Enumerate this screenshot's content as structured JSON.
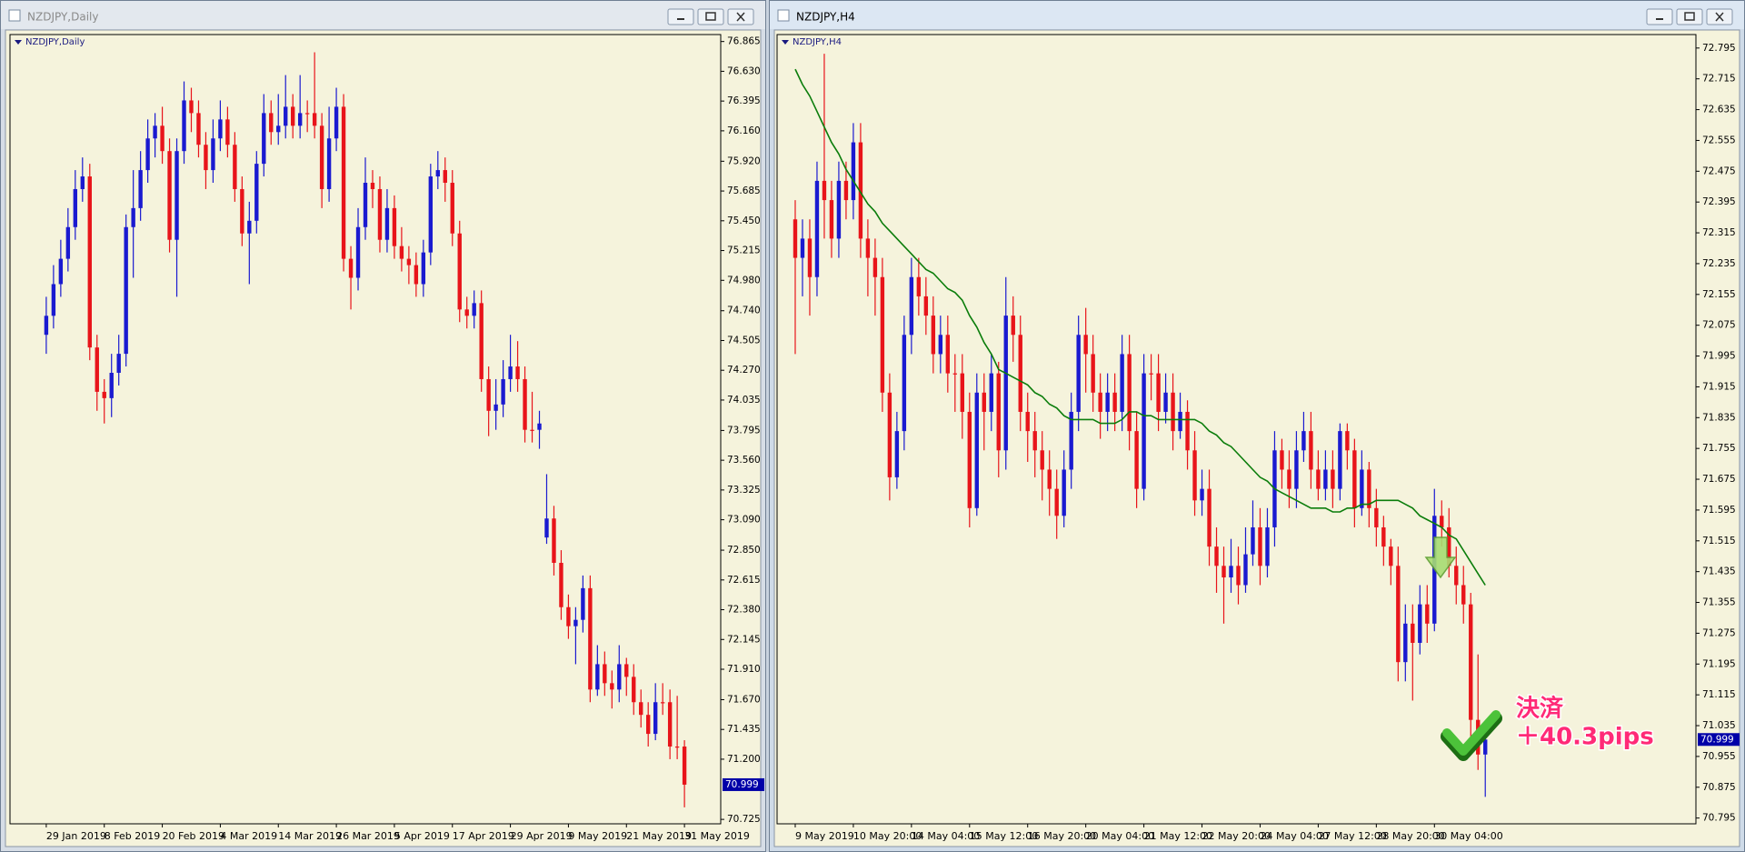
{
  "chart_data": [
    {
      "type": "candlestick",
      "title": "NZDJPY,Daily",
      "background": "#f5f3dc",
      "up_color": "#1a1ad0",
      "down_color": "#e8141a",
      "categories": [
        "29 Jan 2019",
        null,
        null,
        null,
        null,
        null,
        null,
        null,
        "8 Feb 2019",
        null,
        null,
        null,
        null,
        null,
        null,
        null,
        "20 Feb 2019",
        null,
        null,
        null,
        null,
        null,
        null,
        null,
        "4 Mar 2019",
        null,
        null,
        null,
        null,
        null,
        null,
        null,
        "14 Mar 2019",
        null,
        null,
        null,
        null,
        null,
        null,
        null,
        "26 Mar 2019",
        null,
        null,
        null,
        null,
        null,
        null,
        null,
        "5 Apr 2019",
        null,
        null,
        null,
        null,
        null,
        null,
        null,
        "17 Apr 2019",
        null,
        null,
        null,
        null,
        null,
        null,
        null,
        "29 Apr 2019",
        null,
        null,
        null,
        null,
        null,
        null,
        null,
        "9 May 2019",
        null,
        null,
        null,
        null,
        null,
        null,
        null,
        "21 May 2019",
        null,
        null,
        null,
        null,
        null,
        null,
        null,
        "31 May 2019"
      ],
      "open": [
        74.55,
        74.7,
        74.95,
        75.15,
        75.4,
        75.7,
        75.8,
        74.45,
        74.1,
        74.05,
        74.25,
        74.4,
        75.4,
        75.55,
        75.85,
        76.1,
        76.2,
        76.0,
        75.3,
        76.0,
        76.4,
        76.3,
        76.05,
        75.85,
        76.1,
        76.25,
        76.05,
        75.7,
        75.35,
        75.45,
        75.9,
        76.3,
        76.15,
        76.2,
        76.35,
        76.2,
        76.3,
        76.3,
        76.2,
        75.7,
        76.1,
        76.35,
        75.15,
        75.0,
        75.4,
        75.75,
        75.7,
        75.3,
        75.55,
        75.25,
        75.15,
        75.1,
        74.95,
        75.2,
        75.8,
        75.85,
        75.75,
        75.35,
        74.75,
        74.7,
        74.8,
        74.2,
        73.95,
        74.0,
        74.2,
        74.3,
        74.2,
        73.8,
        73.8,
        72.95,
        73.1,
        72.75,
        72.4,
        72.25,
        72.3,
        72.55,
        71.75,
        71.95,
        71.8,
        71.75,
        71.95,
        71.85,
        71.65,
        71.55,
        71.4,
        71.65,
        71.65,
        71.3,
        71.3
      ],
      "high": [
        74.85,
        75.1,
        75.3,
        75.55,
        75.85,
        75.95,
        75.9,
        74.55,
        74.2,
        74.4,
        74.55,
        75.5,
        75.85,
        76.0,
        76.25,
        76.3,
        76.35,
        76.1,
        76.1,
        76.55,
        76.5,
        76.4,
        76.15,
        76.25,
        76.4,
        76.35,
        76.15,
        75.8,
        75.6,
        76.0,
        76.45,
        76.4,
        76.45,
        76.6,
        76.45,
        76.6,
        76.4,
        76.78,
        76.3,
        76.35,
        76.5,
        76.45,
        75.25,
        75.55,
        75.95,
        75.85,
        75.8,
        75.7,
        75.65,
        75.4,
        75.25,
        75.2,
        75.3,
        75.9,
        76.0,
        75.95,
        75.85,
        75.45,
        74.85,
        74.9,
        74.9,
        74.3,
        74.2,
        74.35,
        74.55,
        74.5,
        74.3,
        74.1,
        73.95,
        73.45,
        73.2,
        72.85,
        72.5,
        72.4,
        72.65,
        72.65,
        72.1,
        72.05,
        71.9,
        72.1,
        72.0,
        71.95,
        71.75,
        71.65,
        71.8,
        71.8,
        71.75,
        71.7,
        71.35
      ],
      "low": [
        74.4,
        74.6,
        74.85,
        75.05,
        75.3,
        75.6,
        74.35,
        73.95,
        73.85,
        73.9,
        74.15,
        74.3,
        75.0,
        75.45,
        75.75,
        75.95,
        75.9,
        75.2,
        74.85,
        75.9,
        76.15,
        75.95,
        75.7,
        75.75,
        76.0,
        75.95,
        75.6,
        75.25,
        74.95,
        75.35,
        75.8,
        76.05,
        76.05,
        76.1,
        76.1,
        76.1,
        76.15,
        76.1,
        75.55,
        75.6,
        76.0,
        75.05,
        74.75,
        74.9,
        75.3,
        75.55,
        75.2,
        75.2,
        75.15,
        75.05,
        74.95,
        74.85,
        74.85,
        75.1,
        75.7,
        75.6,
        75.25,
        74.65,
        74.6,
        74.6,
        74.1,
        73.75,
        73.8,
        73.9,
        74.1,
        74.1,
        73.7,
        73.7,
        73.65,
        72.9,
        72.65,
        72.3,
        72.15,
        71.95,
        72.2,
        71.65,
        71.7,
        71.7,
        71.6,
        71.65,
        71.7,
        71.55,
        71.45,
        71.3,
        71.35,
        71.55,
        71.2,
        71.2,
        70.82
      ],
      "close": [
        74.7,
        74.95,
        75.15,
        75.4,
        75.7,
        75.8,
        74.45,
        74.1,
        74.05,
        74.25,
        74.4,
        75.4,
        75.55,
        75.85,
        76.1,
        76.2,
        76.0,
        75.3,
        76.0,
        76.4,
        76.3,
        76.05,
        75.85,
        76.1,
        76.25,
        76.05,
        75.7,
        75.35,
        75.45,
        75.9,
        76.3,
        76.15,
        76.2,
        76.35,
        76.2,
        76.3,
        76.3,
        76.2,
        75.7,
        76.1,
        76.35,
        75.15,
        75.0,
        75.4,
        75.75,
        75.7,
        75.3,
        75.55,
        75.25,
        75.15,
        75.1,
        74.95,
        75.2,
        75.8,
        75.85,
        75.75,
        75.35,
        74.75,
        74.7,
        74.8,
        74.2,
        73.95,
        74.0,
        74.2,
        74.3,
        74.2,
        73.8,
        73.8,
        73.85,
        73.1,
        72.75,
        72.4,
        72.25,
        72.3,
        72.55,
        71.75,
        71.95,
        71.8,
        71.75,
        71.95,
        71.85,
        71.65,
        71.55,
        71.4,
        71.65,
        71.65,
        71.3,
        71.3,
        70.999
      ],
      "current_price": 70.999,
      "current_price_color": "#0000a8",
      "ylim": [
        70.69,
        76.92
      ],
      "yticks": [
        76.865,
        {
          "value": 76.63,
          "label": "76.630"
        },
        76.395,
        {
          "value": 76.16,
          "label": "76.160"
        },
        {
          "value": 75.92,
          "label": "75.920"
        },
        75.685,
        {
          "value": 75.45,
          "label": "75.450"
        },
        75.215,
        {
          "value": 74.98,
          "label": "74.980"
        },
        {
          "value": 74.74,
          "label": "74.740"
        },
        74.505,
        {
          "value": 74.27,
          "label": "74.270"
        },
        74.035,
        73.795,
        {
          "value": 73.56,
          "label": "73.560"
        },
        73.325,
        {
          "value": 73.09,
          "label": "73.090"
        },
        {
          "value": 72.85,
          "label": "72.850"
        },
        72.615,
        {
          "value": 72.38,
          "label": "72.380"
        },
        72.145,
        {
          "value": 71.91,
          "label": "71.910"
        },
        {
          "value": 71.67,
          "label": "71.670"
        },
        71.435,
        {
          "value": 71.2,
          "label": "71.200"
        },
        70.725
      ],
      "grid": false
    },
    {
      "type": "candlestick",
      "title": "NZDJPY,H4",
      "background": "#f5f3dc",
      "up_color": "#1a1ad0",
      "down_color": "#e8141a",
      "categories": [
        "9 May 2019",
        null,
        null,
        null,
        null,
        null,
        null,
        null,
        "10 May 20:00",
        null,
        null,
        null,
        null,
        null,
        null,
        null,
        "14 May 04:00",
        null,
        null,
        null,
        null,
        null,
        null,
        null,
        "15 May 12:00",
        null,
        null,
        null,
        null,
        null,
        null,
        null,
        "16 May 20:00",
        null,
        null,
        null,
        null,
        null,
        null,
        null,
        "20 May 04:00",
        null,
        null,
        null,
        null,
        null,
        null,
        null,
        "21 May 12:00",
        null,
        null,
        null,
        null,
        null,
        null,
        null,
        "22 May 20:00",
        null,
        null,
        null,
        null,
        null,
        null,
        null,
        "24 May 04:00",
        null,
        null,
        null,
        null,
        null,
        null,
        null,
        "27 May 12:00",
        null,
        null,
        null,
        null,
        null,
        null,
        null,
        "28 May 20:00",
        null,
        null,
        null,
        null,
        null,
        null,
        null,
        "30 May 04:00",
        null,
        null,
        null,
        null,
        null,
        null,
        null
      ],
      "open": [
        72.35,
        72.25,
        72.3,
        72.2,
        72.45,
        72.4,
        72.3,
        72.45,
        72.4,
        72.55,
        72.3,
        72.25,
        72.2,
        71.9,
        71.68,
        71.8,
        72.05,
        72.2,
        72.15,
        72.1,
        72.0,
        72.05,
        71.95,
        71.95,
        71.85,
        71.6,
        71.9,
        71.85,
        71.95,
        71.75,
        72.1,
        72.05,
        71.85,
        71.8,
        71.75,
        71.7,
        71.65,
        71.58,
        71.7,
        71.85,
        72.05,
        72.0,
        71.9,
        71.85,
        71.9,
        71.85,
        72.0,
        71.8,
        71.65,
        71.95,
        71.95,
        71.85,
        71.9,
        71.8,
        71.85,
        71.75,
        71.62,
        71.65,
        71.5,
        71.45,
        71.42,
        71.45,
        71.4,
        71.48,
        71.55,
        71.45,
        71.55,
        71.75,
        71.7,
        71.65,
        71.75,
        71.8,
        71.7,
        71.65,
        71.7,
        71.65,
        71.8,
        71.75,
        71.6,
        71.7,
        71.6,
        71.55,
        71.5,
        71.45,
        71.2,
        71.3,
        71.25,
        71.35,
        71.3,
        71.58,
        71.55,
        71.45,
        71.4,
        71.35,
        71.05,
        70.96
      ],
      "high": [
        72.4,
        72.35,
        72.35,
        72.5,
        72.78,
        72.45,
        72.5,
        72.5,
        72.6,
        72.6,
        72.35,
        72.3,
        72.25,
        71.95,
        71.85,
        72.1,
        72.25,
        72.25,
        72.2,
        72.15,
        72.1,
        72.1,
        72.0,
        72.0,
        71.9,
        71.95,
        71.95,
        72.0,
        71.98,
        72.2,
        72.15,
        72.1,
        71.9,
        71.85,
        71.8,
        71.75,
        71.7,
        71.75,
        71.9,
        72.1,
        72.12,
        72.05,
        71.95,
        71.95,
        71.95,
        72.05,
        72.05,
        71.85,
        72.0,
        72.0,
        72.0,
        71.95,
        71.95,
        71.9,
        71.88,
        71.8,
        71.7,
        71.7,
        71.55,
        71.5,
        71.52,
        71.5,
        71.55,
        71.62,
        71.6,
        71.6,
        71.8,
        71.78,
        71.75,
        71.8,
        71.85,
        71.85,
        71.75,
        71.75,
        71.75,
        71.82,
        71.82,
        71.78,
        71.75,
        71.72,
        71.65,
        71.58,
        71.52,
        71.5,
        71.35,
        71.35,
        71.4,
        71.4,
        71.65,
        71.62,
        71.6,
        71.5,
        71.45,
        71.38,
        71.22,
        71.02
      ],
      "low": [
        72.0,
        72.15,
        72.1,
        72.15,
        72.3,
        72.25,
        72.25,
        72.35,
        72.35,
        72.25,
        72.15,
        72.1,
        71.85,
        71.62,
        71.65,
        71.75,
        72.0,
        72.1,
        72.05,
        71.95,
        71.95,
        71.9,
        71.85,
        71.78,
        71.55,
        71.58,
        71.75,
        71.8,
        71.68,
        71.7,
        71.98,
        71.8,
        71.72,
        71.68,
        71.62,
        71.58,
        71.52,
        71.55,
        71.65,
        71.8,
        71.9,
        71.85,
        71.78,
        71.8,
        71.8,
        71.8,
        71.75,
        71.6,
        71.62,
        71.88,
        71.8,
        71.82,
        71.75,
        71.78,
        71.7,
        71.58,
        71.58,
        71.45,
        71.38,
        71.3,
        71.38,
        71.35,
        71.38,
        71.45,
        71.4,
        71.42,
        71.5,
        71.65,
        71.6,
        71.6,
        71.72,
        71.65,
        71.62,
        71.62,
        71.6,
        71.62,
        71.7,
        71.55,
        71.58,
        71.55,
        71.5,
        71.45,
        71.4,
        71.15,
        71.15,
        71.1,
        71.22,
        71.25,
        71.28,
        71.5,
        71.42,
        71.35,
        71.3,
        71.0,
        70.92,
        70.85
      ],
      "close": [
        72.25,
        72.3,
        72.2,
        72.45,
        72.4,
        72.3,
        72.45,
        72.4,
        72.55,
        72.3,
        72.25,
        72.2,
        71.9,
        71.68,
        71.8,
        72.05,
        72.2,
        72.15,
        72.1,
        72.0,
        72.05,
        71.95,
        71.95,
        71.85,
        71.6,
        71.9,
        71.85,
        71.95,
        71.75,
        72.1,
        72.05,
        71.85,
        71.8,
        71.75,
        71.7,
        71.65,
        71.58,
        71.7,
        71.85,
        72.05,
        72.0,
        71.9,
        71.85,
        71.9,
        71.85,
        72.0,
        71.8,
        71.65,
        71.95,
        71.95,
        71.85,
        71.9,
        71.8,
        71.85,
        71.75,
        71.62,
        71.65,
        71.5,
        71.45,
        71.42,
        71.45,
        71.4,
        71.48,
        71.55,
        71.45,
        71.55,
        71.75,
        71.7,
        71.65,
        71.75,
        71.8,
        71.7,
        71.65,
        71.7,
        71.65,
        71.8,
        71.75,
        71.6,
        71.7,
        71.6,
        71.55,
        71.5,
        71.45,
        71.2,
        71.3,
        71.25,
        71.35,
        71.3,
        71.58,
        71.55,
        71.45,
        71.4,
        71.35,
        71.05,
        70.96,
        70.999
      ],
      "moving_average": {
        "color": "#0b7d0b",
        "values": [
          72.74,
          72.7,
          72.67,
          72.63,
          72.59,
          72.55,
          72.52,
          72.48,
          72.45,
          72.42,
          72.39,
          72.37,
          72.34,
          72.32,
          72.3,
          72.28,
          72.26,
          72.24,
          72.22,
          72.21,
          72.19,
          72.17,
          72.16,
          72.14,
          72.1,
          72.07,
          72.03,
          72.0,
          71.96,
          71.95,
          71.94,
          71.93,
          71.92,
          71.9,
          71.89,
          71.87,
          71.86,
          71.84,
          71.83,
          71.83,
          71.83,
          71.83,
          71.82,
          71.82,
          71.82,
          71.83,
          71.85,
          71.85,
          71.84,
          71.84,
          71.83,
          71.83,
          71.83,
          71.83,
          71.83,
          71.83,
          71.82,
          71.8,
          71.79,
          71.77,
          71.76,
          71.74,
          71.72,
          71.7,
          71.68,
          71.67,
          71.65,
          71.64,
          71.63,
          71.62,
          71.61,
          71.6,
          71.6,
          71.6,
          71.59,
          71.59,
          71.6,
          71.6,
          71.61,
          71.61,
          71.62,
          71.62,
          71.62,
          71.62,
          71.61,
          71.6,
          71.58,
          71.57,
          71.56,
          71.55,
          71.53,
          71.52,
          71.49,
          71.46,
          71.43,
          71.4
        ]
      },
      "current_price": 70.999,
      "current_price_color": "#0000a8",
      "annotations": [
        "決済",
        "＋40.3pips"
      ],
      "annotation_color": "#ff2a77",
      "ylim": [
        70.78,
        72.83
      ],
      "yticks": [
        72.795,
        72.715,
        72.635,
        72.555,
        72.475,
        72.395,
        72.315,
        72.235,
        72.155,
        72.075,
        71.995,
        71.915,
        71.835,
        71.755,
        71.675,
        71.595,
        71.515,
        71.435,
        71.355,
        71.275,
        71.195,
        71.115,
        71.035,
        70.955,
        70.875,
        70.795
      ],
      "grid": false
    }
  ]
}
